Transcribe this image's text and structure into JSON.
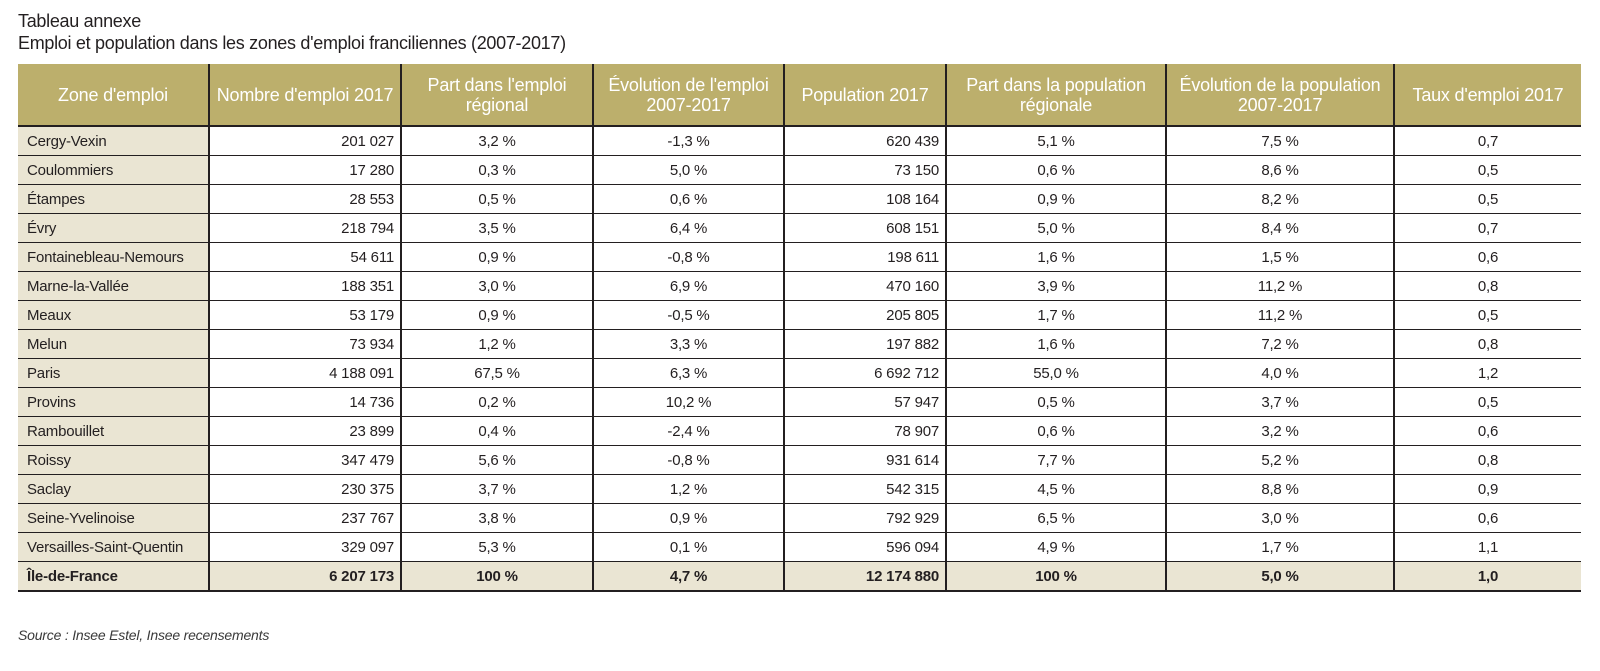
{
  "title": "Tableau annexe",
  "subtitle": "Emploi et population dans les zones d'emploi franciliennes (2007-2017)",
  "columns": [
    "Zone d'emploi",
    "Nombre d'emploi 2017",
    "Part dans l'emploi régional",
    "Évolution de l'emploi 2007-2017",
    "Population 2017",
    "Part dans la population régionale",
    "Évolution de la population 2007-2017",
    "Taux d'emploi 2017"
  ],
  "rows": [
    [
      "Cergy-Vexin",
      "201 027",
      "3,2 %",
      "-1,3 %",
      "620 439",
      "5,1 %",
      "7,5 %",
      "0,7"
    ],
    [
      "Coulommiers",
      "17 280",
      "0,3 %",
      "5,0 %",
      "73 150",
      "0,6 %",
      "8,6 %",
      "0,5"
    ],
    [
      "Étampes",
      "28 553",
      "0,5 %",
      "0,6 %",
      "108 164",
      "0,9 %",
      "8,2 %",
      "0,5"
    ],
    [
      "Évry",
      "218 794",
      "3,5 %",
      "6,4 %",
      "608 151",
      "5,0 %",
      "8,4 %",
      "0,7"
    ],
    [
      "Fontainebleau-Nemours",
      "54 611",
      "0,9 %",
      "-0,8 %",
      "198 611",
      "1,6 %",
      "1,5 %",
      "0,6"
    ],
    [
      "Marne-la-Vallée",
      "188 351",
      "3,0 %",
      "6,9 %",
      "470 160",
      "3,9 %",
      "11,2 %",
      "0,8"
    ],
    [
      "Meaux",
      "53 179",
      "0,9 %",
      "-0,5 %",
      "205 805",
      "1,7 %",
      "11,2 %",
      "0,5"
    ],
    [
      "Melun",
      "73 934",
      "1,2 %",
      "3,3 %",
      "197 882",
      "1,6 %",
      "7,2 %",
      "0,8"
    ],
    [
      "Paris",
      "4 188 091",
      "67,5 %",
      "6,3 %",
      "6 692 712",
      "55,0 %",
      "4,0 %",
      "1,2"
    ],
    [
      "Provins",
      "14 736",
      "0,2 %",
      "10,2 %",
      "57 947",
      "0,5 %",
      "3,7 %",
      "0,5"
    ],
    [
      "Rambouillet",
      "23 899",
      "0,4 %",
      "-2,4 %",
      "78 907",
      "0,6 %",
      "3,2 %",
      "0,6"
    ],
    [
      "Roissy",
      "347 479",
      "5,6 %",
      "-0,8 %",
      "931 614",
      "7,7 %",
      "5,2 %",
      "0,8"
    ],
    [
      "Saclay",
      "230 375",
      "3,7 %",
      "1,2 %",
      "542 315",
      "4,5 %",
      "8,8 %",
      "0,9"
    ],
    [
      "Seine-Yvelinoise",
      "237 767",
      "3,8 %",
      "0,9 %",
      "792 929",
      "6,5 %",
      "3,0 %",
      "0,6"
    ],
    [
      "Versailles-Saint-Quentin",
      "329 097",
      "5,3 %",
      "0,1 %",
      "596 094",
      "4,9 %",
      "1,7 %",
      "1,1"
    ]
  ],
  "total": [
    "Île-de-France",
    "6 207 173",
    "100 %",
    "4,7 %",
    "12 174 880",
    "100 %",
    "5,0 %",
    "1,0"
  ],
  "source": "Source : Insee Estel, Insee recensements",
  "colors": {
    "header_bg": "#bcaf6c",
    "first_col_bg": "#eae5d3",
    "rule": "#231f20"
  }
}
